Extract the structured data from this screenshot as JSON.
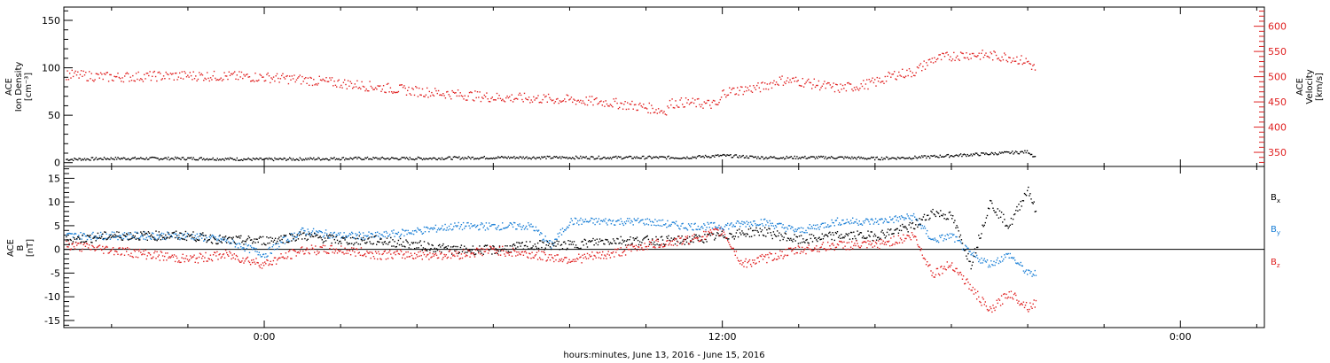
{
  "time_axis": {
    "label": "hours:minutes, June 13, 2016 - June 15, 2016",
    "ticks": [
      "0:00",
      "12:00",
      "0:00"
    ]
  },
  "colors": {
    "black": "#000000",
    "red": "#e02020",
    "blue": "#1a7fd6"
  },
  "chart_data": [
    {
      "type": "scatter",
      "ylabel_left": [
        "ACE",
        "Ion Density",
        "[cm⁻³]"
      ],
      "ylabel_right": [
        "ACE",
        "Velocity",
        "[km/s]"
      ],
      "x_hours": {
        "domain": [
          -5.25,
          26.2
        ],
        "data_end": 20.2
      },
      "y_left": {
        "lim": [
          -4,
          164
        ],
        "ticks": [
          0,
          50,
          100,
          150
        ]
      },
      "y_right": {
        "lim": [
          322,
          638
        ],
        "ticks": [
          350,
          400,
          450,
          500,
          550,
          600
        ]
      },
      "series": [
        {
          "color": "black",
          "axis": "left",
          "x": [
            -5.2,
            -4,
            -2,
            0,
            2,
            4,
            6,
            8,
            9,
            10,
            11,
            12,
            13,
            14,
            15,
            16,
            17,
            18,
            19,
            20,
            20.2
          ],
          "y": [
            4,
            5,
            5,
            4,
            5,
            5,
            6,
            6,
            6,
            6,
            6,
            8,
            6,
            6,
            6,
            5,
            6,
            8,
            10,
            12,
            6
          ]
        },
        {
          "color": "red",
          "axis": "right",
          "x": [
            -5.2,
            -4,
            -3,
            -2,
            -1,
            0,
            1,
            2,
            3,
            4,
            5,
            6,
            7,
            8,
            9,
            10,
            10.5,
            10.6,
            11,
            11.9,
            12,
            12.5,
            13,
            13.5,
            14,
            14.5,
            15,
            15.5,
            16,
            16.5,
            17,
            17.5,
            18,
            18.5,
            19,
            19.5,
            20,
            20.2
          ],
          "y": [
            505,
            500,
            502,
            503,
            502,
            500,
            495,
            488,
            480,
            472,
            466,
            460,
            458,
            455,
            450,
            440,
            432,
            448,
            450,
            445,
            470,
            475,
            480,
            494,
            492,
            485,
            478,
            482,
            490,
            505,
            510,
            535,
            542,
            545,
            543,
            540,
            530,
            515
          ]
        }
      ]
    },
    {
      "type": "scatter",
      "ylabel_left": [
        "ACE",
        "B",
        "[nT]"
      ],
      "x_hours": {
        "domain": [
          -5.25,
          26.2
        ],
        "data_end": 20.2
      },
      "y_left": {
        "lim": [
          -16.5,
          17.5
        ],
        "ticks": [
          -15,
          -10,
          -5,
          0,
          5,
          10,
          15
        ]
      },
      "series": [
        {
          "name": "Bx",
          "color": "black",
          "x": [
            -5.2,
            -4,
            -3,
            -2,
            -1,
            0,
            1,
            2,
            3,
            4,
            5,
            6,
            7,
            8,
            9,
            10,
            11,
            12,
            13,
            14,
            15,
            16,
            17,
            17.5,
            18,
            18.5,
            19,
            19.5,
            20,
            20.2
          ],
          "y": [
            2,
            3,
            3,
            3,
            2,
            2,
            3,
            2,
            2,
            1,
            0,
            0,
            1,
            1,
            2,
            2,
            2,
            3,
            4,
            2,
            3,
            3,
            5,
            8,
            7,
            -3,
            10,
            5,
            13,
            8
          ]
        },
        {
          "name": "By",
          "color": "blue",
          "x": [
            -5.2,
            -4,
            -3,
            -2,
            -1,
            0,
            0.5,
            1,
            2,
            3,
            4,
            5,
            6,
            7,
            7.5,
            8,
            9,
            10,
            11,
            12,
            13,
            14,
            15,
            16,
            17,
            17.5,
            18,
            18.5,
            19,
            19.5,
            20,
            20.2
          ],
          "y": [
            3,
            3,
            3,
            3,
            2,
            -1,
            2,
            4,
            3,
            3,
            4,
            5,
            5,
            5,
            1,
            6,
            6,
            6,
            5,
            5,
            6,
            4,
            6,
            6,
            7,
            2,
            3,
            -1,
            -3,
            -1,
            -5,
            -5
          ]
        },
        {
          "name": "Bz",
          "color": "red",
          "x": [
            -5.2,
            -4,
            -3,
            -2,
            -1,
            0,
            1,
            2,
            3,
            4,
            5,
            6,
            7,
            8,
            9,
            10,
            11,
            12,
            12.5,
            13,
            14,
            15,
            16,
            17,
            17.5,
            18,
            18.5,
            19,
            19.5,
            20,
            20.2
          ],
          "y": [
            1,
            0,
            -1,
            -2,
            -1,
            -3,
            0,
            0,
            -1,
            -1,
            -1,
            0,
            -1,
            -2,
            -1,
            1,
            2,
            4,
            -3,
            -2,
            0,
            1,
            1,
            3,
            -5,
            -3,
            -8,
            -13,
            -9,
            -12,
            -11
          ]
        }
      ]
    }
  ],
  "legend": {
    "Bx": "B",
    "Bx_sub": "x",
    "By": "B",
    "By_sub": "y",
    "Bz": "B",
    "Bz_sub": "z"
  }
}
